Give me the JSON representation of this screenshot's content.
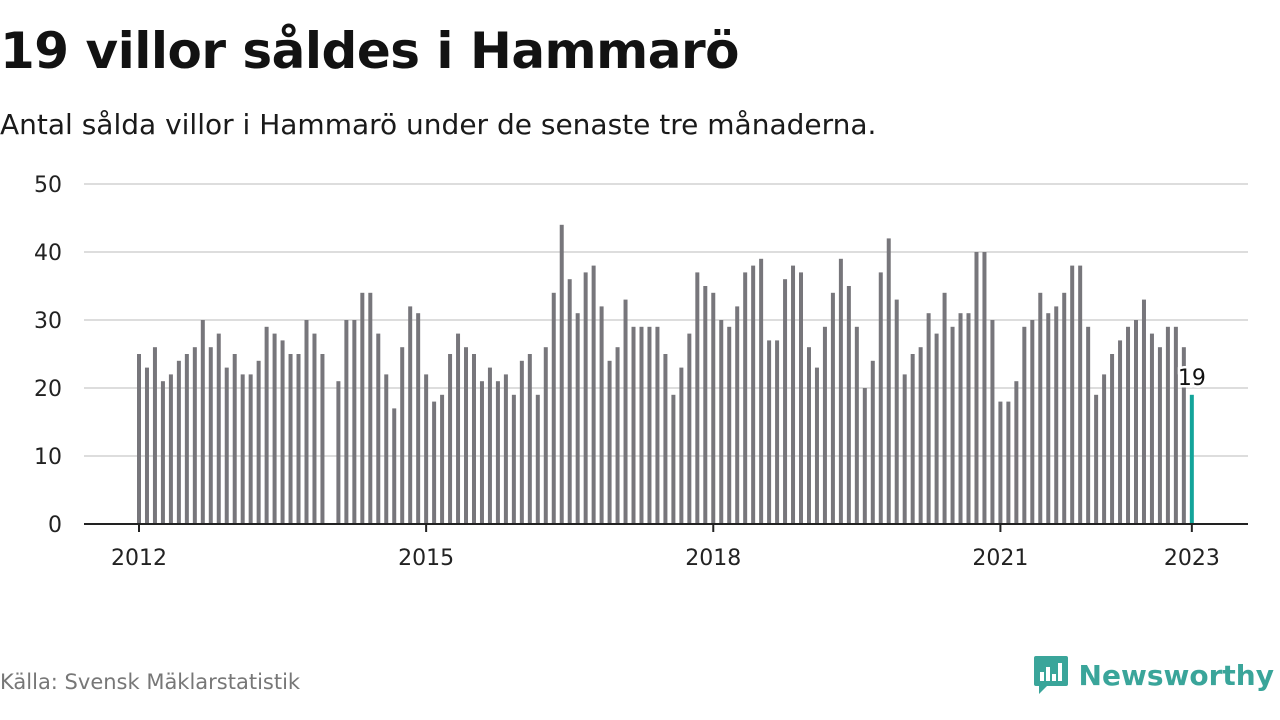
{
  "header": {
    "title": "19 villor såldes i Hammarö",
    "subtitle": "Antal sålda villor i Hammarö under de senaste tre månaderna."
  },
  "footer": {
    "source": "Källa: Svensk Mäklarstatistik",
    "brand": "Newsworthy",
    "brand_icon": "newsworthy-logo-icon"
  },
  "colors": {
    "bar": "#77767b",
    "highlight": "#13a49a",
    "grid": "#dddddd",
    "axis": "#222222",
    "brand": "#3aa59a"
  },
  "chart_data": {
    "type": "bar",
    "title": "19 villor såldes i Hammarö",
    "subtitle": "Antal sålda villor i Hammarö under de senaste tre månaderna.",
    "xlabel": "",
    "ylabel": "",
    "ylim": [
      0,
      50
    ],
    "yticks": [
      0,
      10,
      20,
      30,
      40,
      50
    ],
    "x_start": "2012-01",
    "x_end": "2023-01",
    "xticks": [
      "2012",
      "2015",
      "2018",
      "2021",
      "2023"
    ],
    "grid": true,
    "legend": "none",
    "values": [
      25,
      23,
      26,
      21,
      22,
      24,
      25,
      26,
      30,
      26,
      28,
      23,
      25,
      22,
      22,
      24,
      29,
      28,
      27,
      25,
      25,
      30,
      28,
      25,
      null,
      21,
      30,
      30,
      34,
      34,
      28,
      22,
      17,
      26,
      32,
      31,
      22,
      18,
      19,
      25,
      28,
      26,
      25,
      21,
      23,
      21,
      22,
      19,
      24,
      25,
      19,
      26,
      34,
      44,
      36,
      31,
      37,
      38,
      32,
      24,
      26,
      33,
      29,
      29,
      29,
      29,
      25,
      19,
      23,
      28,
      37,
      35,
      34,
      30,
      29,
      32,
      37,
      38,
      39,
      27,
      27,
      36,
      38,
      37,
      26,
      23,
      29,
      34,
      39,
      35,
      29,
      20,
      24,
      37,
      42,
      33,
      22,
      25,
      26,
      31,
      28,
      34,
      29,
      31,
      31,
      40,
      40,
      30,
      18,
      18,
      21,
      29,
      30,
      34,
      31,
      32,
      34,
      38,
      38,
      29,
      19,
      22,
      25,
      27,
      29,
      30,
      33,
      28,
      26,
      29,
      29,
      26,
      19
    ],
    "highlight": {
      "x": "2023-01",
      "value": 19,
      "label": "19"
    }
  }
}
